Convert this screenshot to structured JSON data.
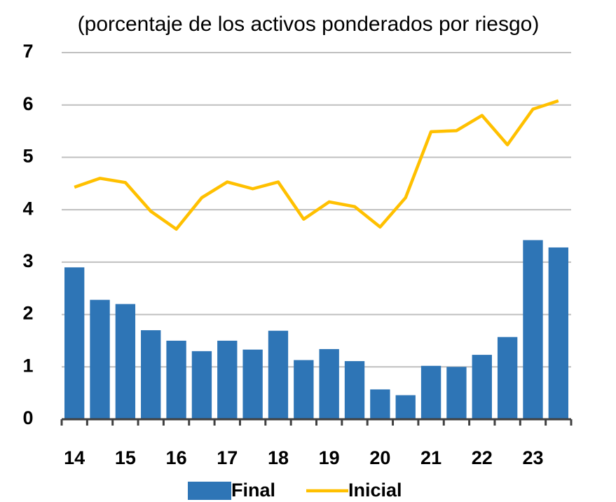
{
  "chart_data": {
    "type": "bar",
    "title": "(porcentaje de los activos ponderados por riesgo)",
    "categories": [
      "14",
      null,
      "15",
      null,
      "16",
      null,
      "17",
      null,
      "18",
      null,
      "19",
      null,
      "20",
      null,
      "21",
      null,
      "22",
      null,
      "23",
      null
    ],
    "series": [
      {
        "name": "Final",
        "type": "bar",
        "color": "#2e75b6",
        "values": [
          2.9,
          2.28,
          2.2,
          1.7,
          1.5,
          1.3,
          1.5,
          1.33,
          1.69,
          1.13,
          1.34,
          1.11,
          0.57,
          0.46,
          1.02,
          1.0,
          1.23,
          1.57,
          3.42,
          3.28
        ]
      },
      {
        "name": "Inicial",
        "type": "line",
        "color": "#ffc000",
        "values": [
          4.43,
          4.6,
          4.52,
          3.97,
          3.63,
          4.23,
          4.53,
          4.4,
          4.53,
          3.82,
          4.15,
          4.06,
          3.67,
          4.23,
          5.49,
          5.51,
          5.8,
          5.24,
          5.92,
          6.08
        ]
      }
    ],
    "ylim": [
      0,
      7
    ],
    "yticks": [
      0,
      1,
      2,
      3,
      4,
      5,
      6,
      7
    ],
    "grid": true
  }
}
